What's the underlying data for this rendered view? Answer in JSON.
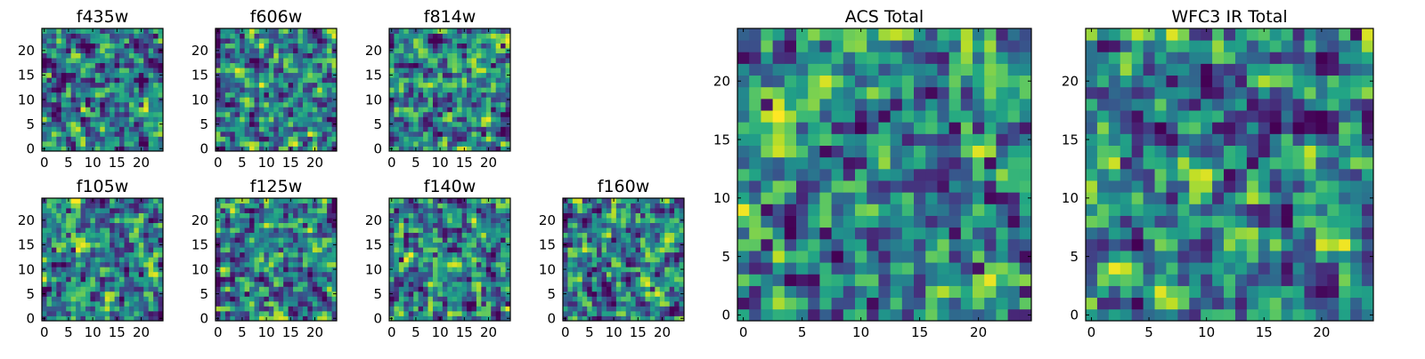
{
  "chart_data": [
    {
      "type": "heatmap",
      "title": "f435w",
      "x_ticks": [
        "0",
        "5",
        "10",
        "15",
        "20"
      ],
      "y_ticks": [
        "0",
        "5",
        "10",
        "15",
        "20"
      ],
      "xlim": [
        -0.5,
        24.5
      ],
      "ylim": [
        -0.5,
        24.5
      ],
      "grid": "off",
      "colormap": "viridis",
      "seed": 11
    },
    {
      "type": "heatmap",
      "title": "f606w",
      "x_ticks": [
        "0",
        "5",
        "10",
        "15",
        "20"
      ],
      "y_ticks": [
        "0",
        "5",
        "10",
        "15",
        "20"
      ],
      "xlim": [
        -0.5,
        24.5
      ],
      "ylim": [
        -0.5,
        24.5
      ],
      "grid": "off",
      "colormap": "viridis",
      "seed": 23
    },
    {
      "type": "heatmap",
      "title": "f814w",
      "x_ticks": [
        "0",
        "5",
        "10",
        "15",
        "20"
      ],
      "y_ticks": [
        "0",
        "5",
        "10",
        "15",
        "20"
      ],
      "xlim": [
        -0.5,
        24.5
      ],
      "ylim": [
        -0.5,
        24.5
      ],
      "grid": "off",
      "colormap": "viridis",
      "seed": 37
    },
    {
      "type": "heatmap",
      "title": "f105w",
      "x_ticks": [
        "0",
        "5",
        "10",
        "15",
        "20"
      ],
      "y_ticks": [
        "0",
        "5",
        "10",
        "15",
        "20"
      ],
      "xlim": [
        -0.5,
        24.5
      ],
      "ylim": [
        -0.5,
        24.5
      ],
      "grid": "off",
      "colormap": "viridis",
      "seed": 41
    },
    {
      "type": "heatmap",
      "title": "f125w",
      "x_ticks": [
        "0",
        "5",
        "10",
        "15",
        "20"
      ],
      "y_ticks": [
        "0",
        "5",
        "10",
        "15",
        "20"
      ],
      "xlim": [
        -0.5,
        24.5
      ],
      "ylim": [
        -0.5,
        24.5
      ],
      "grid": "off",
      "colormap": "viridis",
      "seed": 53
    },
    {
      "type": "heatmap",
      "title": "f140w",
      "x_ticks": [
        "0",
        "5",
        "10",
        "15",
        "20"
      ],
      "y_ticks": [
        "0",
        "5",
        "10",
        "15",
        "20"
      ],
      "xlim": [
        -0.5,
        24.5
      ],
      "ylim": [
        -0.5,
        24.5
      ],
      "grid": "off",
      "colormap": "viridis",
      "seed": 67
    },
    {
      "type": "heatmap",
      "title": "f160w",
      "x_ticks": [
        "0",
        "5",
        "10",
        "15",
        "20"
      ],
      "y_ticks": [
        "0",
        "5",
        "10",
        "15",
        "20"
      ],
      "xlim": [
        -0.5,
        24.5
      ],
      "ylim": [
        -0.5,
        24.5
      ],
      "grid": "off",
      "colormap": "viridis",
      "seed": 79
    },
    {
      "type": "heatmap",
      "title": "ACS Total",
      "x_ticks": [
        "0",
        "5",
        "10",
        "15",
        "20"
      ],
      "y_ticks": [
        "0",
        "5",
        "10",
        "15",
        "20"
      ],
      "xlim": [
        -0.5,
        24.5
      ],
      "ylim": [
        -0.5,
        24.5
      ],
      "grid": "off",
      "colormap": "viridis",
      "seed": 83
    },
    {
      "type": "heatmap",
      "title": "WFC3 IR Total",
      "x_ticks": [
        "0",
        "5",
        "10",
        "15",
        "20"
      ],
      "y_ticks": [
        "0",
        "5",
        "10",
        "15",
        "20"
      ],
      "xlim": [
        -0.5,
        24.5
      ],
      "ylim": [
        -0.5,
        24.5
      ],
      "grid": "off",
      "colormap": "viridis",
      "seed": 97
    }
  ],
  "colors": {
    "viridis_dark": "#440154",
    "viridis_mid": "#21908d",
    "viridis_bright": "#fde725",
    "axes": "#000000"
  }
}
